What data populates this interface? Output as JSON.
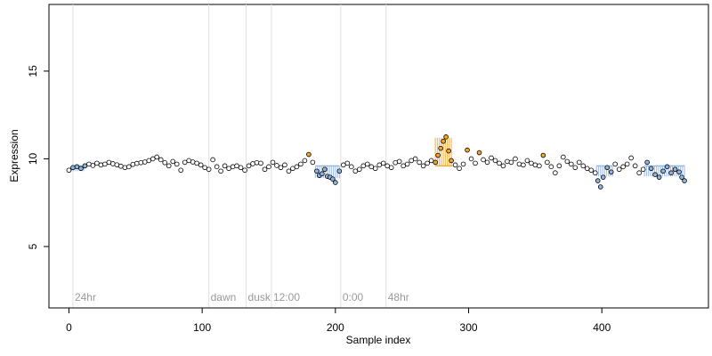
{
  "chart_data": {
    "type": "scatter",
    "xlabel": "Sample index",
    "ylabel": "Expression",
    "xlim": [
      -15,
      480
    ],
    "ylim": [
      1.5,
      18.8
    ],
    "xticks": [
      0,
      100,
      200,
      300,
      400
    ],
    "yticks": [
      5,
      10,
      15
    ],
    "baseline": 9.6,
    "colors": {
      "point_neutral": "#ffffff",
      "point_up": "#f5a524",
      "point_down": "#8fb3e0",
      "bar_up": "#f5a524",
      "bar_down": "#8fb3e0",
      "phase_line": "#e0e0e0",
      "phase_text": "#9a9a9a"
    },
    "phase_markers": [
      {
        "x": 3,
        "label": "24hr"
      },
      {
        "x": 105,
        "label": "dawn"
      },
      {
        "x": 133,
        "label": "dusk"
      },
      {
        "x": 152,
        "label": "12:00"
      },
      {
        "x": 204,
        "label": "0:00"
      },
      {
        "x": 238,
        "label": "48hr"
      }
    ],
    "highlight_regions": [
      {
        "x_start": 2,
        "x_end": 12,
        "value": 9.3,
        "direction": "down"
      },
      {
        "x_start": 185,
        "x_end": 203,
        "value": 8.9,
        "direction": "down"
      },
      {
        "x_start": 275,
        "x_end": 288,
        "value": 11.2,
        "direction": "up"
      },
      {
        "x_start": 396,
        "x_end": 408,
        "value": 9.0,
        "direction": "down"
      },
      {
        "x_start": 432,
        "x_end": 462,
        "value": 9.0,
        "direction": "down"
      }
    ],
    "points": [
      [
        0,
        9.35
      ],
      [
        3,
        9.5
      ],
      [
        6,
        9.55
      ],
      [
        9,
        9.45
      ],
      [
        12,
        9.6
      ],
      [
        15,
        9.7
      ],
      [
        18,
        9.62
      ],
      [
        21,
        9.75
      ],
      [
        24,
        9.65
      ],
      [
        27,
        9.7
      ],
      [
        30,
        9.8
      ],
      [
        33,
        9.72
      ],
      [
        36,
        9.66
      ],
      [
        39,
        9.58
      ],
      [
        42,
        9.5
      ],
      [
        45,
        9.55
      ],
      [
        48,
        9.68
      ],
      [
        51,
        9.74
      ],
      [
        54,
        9.78
      ],
      [
        57,
        9.82
      ],
      [
        60,
        9.9
      ],
      [
        63,
        10.0
      ],
      [
        66,
        10.1
      ],
      [
        69,
        9.95
      ],
      [
        72,
        9.78
      ],
      [
        75,
        9.6
      ],
      [
        78,
        9.85
      ],
      [
        81,
        9.7
      ],
      [
        84,
        9.35
      ],
      [
        87,
        9.8
      ],
      [
        90,
        9.9
      ],
      [
        93,
        9.82
      ],
      [
        96,
        9.75
      ],
      [
        99,
        9.65
      ],
      [
        102,
        9.5
      ],
      [
        105,
        9.4
      ],
      [
        108,
        9.95
      ],
      [
        111,
        9.55
      ],
      [
        114,
        9.3
      ],
      [
        117,
        9.6
      ],
      [
        120,
        9.45
      ],
      [
        123,
        9.55
      ],
      [
        126,
        9.6
      ],
      [
        129,
        9.5
      ],
      [
        132,
        9.35
      ],
      [
        135,
        9.6
      ],
      [
        138,
        9.72
      ],
      [
        141,
        9.78
      ],
      [
        144,
        9.75
      ],
      [
        147,
        9.4
      ],
      [
        150,
        9.55
      ],
      [
        153,
        9.8
      ],
      [
        156,
        9.62
      ],
      [
        159,
        9.5
      ],
      [
        162,
        9.65
      ],
      [
        165,
        9.3
      ],
      [
        168,
        9.45
      ],
      [
        171,
        9.55
      ],
      [
        174,
        9.7
      ],
      [
        177,
        9.9
      ],
      [
        180,
        10.25
      ],
      [
        183,
        9.8
      ],
      [
        186,
        9.3
      ],
      [
        188,
        9.05
      ],
      [
        190,
        9.15
      ],
      [
        192,
        9.4
      ],
      [
        194,
        9.0
      ],
      [
        196,
        8.95
      ],
      [
        198,
        8.85
      ],
      [
        200,
        8.65
      ],
      [
        203,
        9.3
      ],
      [
        206,
        9.65
      ],
      [
        209,
        9.75
      ],
      [
        212,
        9.55
      ],
      [
        215,
        9.3
      ],
      [
        218,
        9.4
      ],
      [
        221,
        9.6
      ],
      [
        224,
        9.7
      ],
      [
        227,
        9.55
      ],
      [
        230,
        9.45
      ],
      [
        233,
        9.65
      ],
      [
        236,
        9.75
      ],
      [
        239,
        9.6
      ],
      [
        242,
        9.5
      ],
      [
        245,
        9.78
      ],
      [
        248,
        9.85
      ],
      [
        251,
        9.6
      ],
      [
        254,
        9.7
      ],
      [
        257,
        9.9
      ],
      [
        260,
        10.0
      ],
      [
        263,
        9.8
      ],
      [
        266,
        9.6
      ],
      [
        269,
        9.75
      ],
      [
        272,
        9.9
      ],
      [
        275,
        9.8
      ],
      [
        277,
        10.2
      ],
      [
        279,
        10.6
      ],
      [
        281,
        11.0
      ],
      [
        283,
        11.25
      ],
      [
        285,
        10.45
      ],
      [
        287,
        9.9
      ],
      [
        290,
        9.65
      ],
      [
        293,
        9.45
      ],
      [
        296,
        9.7
      ],
      [
        299,
        10.5
      ],
      [
        302,
        10.0
      ],
      [
        305,
        9.75
      ],
      [
        308,
        10.35
      ],
      [
        311,
        9.95
      ],
      [
        314,
        9.8
      ],
      [
        317,
        10.05
      ],
      [
        320,
        9.9
      ],
      [
        323,
        9.75
      ],
      [
        326,
        9.6
      ],
      [
        329,
        9.85
      ],
      [
        332,
        9.8
      ],
      [
        335,
        10.0
      ],
      [
        338,
        9.7
      ],
      [
        341,
        9.65
      ],
      [
        344,
        9.9
      ],
      [
        347,
        9.75
      ],
      [
        350,
        9.65
      ],
      [
        353,
        9.6
      ],
      [
        356,
        10.2
      ],
      [
        359,
        9.8
      ],
      [
        362,
        9.55
      ],
      [
        365,
        9.2
      ],
      [
        368,
        9.6
      ],
      [
        371,
        10.1
      ],
      [
        374,
        9.85
      ],
      [
        377,
        9.7
      ],
      [
        380,
        9.5
      ],
      [
        383,
        9.8
      ],
      [
        386,
        9.6
      ],
      [
        389,
        9.45
      ],
      [
        392,
        9.35
      ],
      [
        395,
        9.2
      ],
      [
        397,
        8.75
      ],
      [
        399,
        8.4
      ],
      [
        401,
        8.95
      ],
      [
        404,
        9.5
      ],
      [
        407,
        9.25
      ],
      [
        410,
        9.7
      ],
      [
        413,
        9.4
      ],
      [
        416,
        9.55
      ],
      [
        419,
        9.7
      ],
      [
        422,
        10.05
      ],
      [
        425,
        9.6
      ],
      [
        428,
        9.2
      ],
      [
        431,
        9.4
      ],
      [
        434,
        9.8
      ],
      [
        437,
        9.45
      ],
      [
        440,
        9.1
      ],
      [
        443,
        8.95
      ],
      [
        446,
        9.3
      ],
      [
        449,
        9.55
      ],
      [
        452,
        9.2
      ],
      [
        455,
        9.4
      ],
      [
        458,
        9.25
      ],
      [
        460,
        8.95
      ],
      [
        462,
        8.75
      ]
    ]
  }
}
